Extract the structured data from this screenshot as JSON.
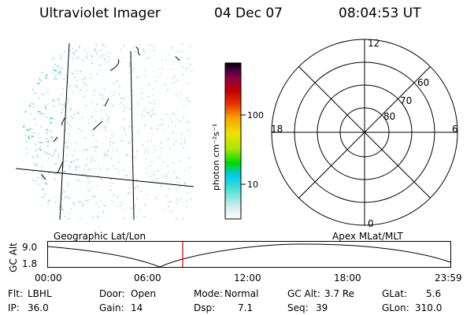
{
  "header": {
    "title": "Ultraviolet Imager",
    "date": "04 Dec 07",
    "time": "08:04:53 UT"
  },
  "colorbar": {
    "unit_label": "photon cm⁻²s⁻¹",
    "ticks": [
      {
        "value": 10,
        "label": "10"
      },
      {
        "value": 100,
        "label": "100"
      }
    ],
    "stops": [
      "#ffffff",
      "#d0ecec",
      "#40e0d0",
      "#00c8f0",
      "#00d800",
      "#a8e800",
      "#f0e000",
      "#f8a000",
      "#e83000",
      "#c00000",
      "#900040",
      "#400040",
      "#000000"
    ]
  },
  "polar_plot": {
    "mlt_labels": {
      "top": "12",
      "left": "18",
      "right": "6",
      "bottom": "0"
    },
    "lat_labels": [
      "80",
      "70",
      "60"
    ]
  },
  "projections": {
    "left": "Geographic Lat/Lon",
    "right": "Apex MLat/MLT"
  },
  "timeline": {
    "ylabel": "GC Alt",
    "y_ticks": [
      "9.0",
      "1.8"
    ],
    "x_ticks": [
      "00:00",
      "06:00",
      "12:00",
      "18:00",
      "23:59"
    ],
    "marker_color": "#e00000"
  },
  "status": {
    "row1": [
      {
        "label": "Flt:",
        "value": "LBHL"
      },
      {
        "label": "Door:",
        "value": "Open"
      },
      {
        "label": "Mode:",
        "value": "Normal"
      },
      {
        "label": "GC Alt:",
        "value": "3.7 Re"
      },
      {
        "label": "GLat:",
        "value": "5.6"
      }
    ],
    "row2": [
      {
        "label": "IP:",
        "value": "36.0"
      },
      {
        "label": "Gain:",
        "value": "14"
      },
      {
        "label": "Dsp:",
        "value": "7.1"
      },
      {
        "label": "Seq:",
        "value": "39"
      },
      {
        "label": "GLon:",
        "value": "310.0"
      }
    ]
  }
}
